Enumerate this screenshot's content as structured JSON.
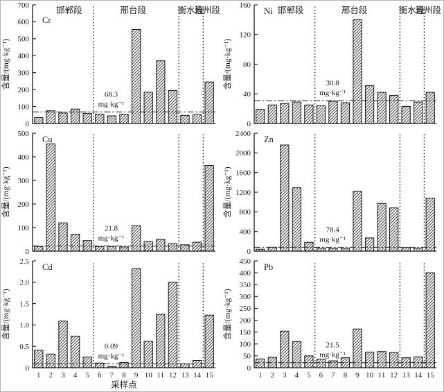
{
  "figure_name": "heavy-metal-concentration-bar-charts",
  "colors": {
    "ink": "#1a1a1a",
    "axis": "#141414",
    "bar_fill": "#ffffff",
    "hatch": "#1c1c1c",
    "reference_line": "#333333",
    "divider": "#222222",
    "background": "#ffffff"
  },
  "chart_data": {
    "type": "bar",
    "layout": "2 columns x 3 rows, shared x axis of 15 sampling points",
    "categories": [
      "1",
      "2",
      "3",
      "4",
      "5",
      "6",
      "7",
      "8",
      "9",
      "10",
      "11",
      "12",
      "13",
      "14",
      "15"
    ],
    "xlabel": "采样点",
    "ylabel": "含量/(mg·kg⁻¹)",
    "section_labels": [
      "邯郸段",
      "邢台段",
      "衡水段",
      "沧州段"
    ],
    "section_spans": [
      [
        0,
        5
      ],
      [
        5,
        12
      ],
      [
        12,
        14
      ],
      [
        14,
        15
      ]
    ],
    "section_center_fracs": [
      0.2,
      0.55,
      0.865,
      0.955
    ],
    "divider_slots": [
      5,
      12,
      14
    ],
    "grid": false,
    "charts": [
      {
        "element": "Cr",
        "ylim": [
          0,
          700
        ],
        "yticks": [
          0,
          100,
          200,
          300,
          400,
          500,
          600,
          700
        ],
        "ytick_labels": [
          "0",
          "100",
          "200",
          "300",
          "400",
          "500",
          "600",
          "700"
        ],
        "reference_value": 68.3,
        "reference_text": [
          "68.3",
          "mg·kg⁻¹"
        ],
        "values": [
          35,
          75,
          62,
          85,
          60,
          55,
          45,
          55,
          555,
          185,
          370,
          195,
          48,
          52,
          245
        ],
        "show_section_labels": true,
        "show_x_tick_labels": false,
        "show_xlabel": false
      },
      {
        "element": "Ni",
        "ylim": [
          0,
          160
        ],
        "yticks": [
          0,
          40,
          80,
          120,
          160
        ],
        "ytick_labels": [
          "0",
          "40",
          "80",
          "120",
          "160"
        ],
        "reference_value": 30.8,
        "reference_text": [
          "30.8",
          "mg·kg⁻¹"
        ],
        "values": [
          19,
          25,
          27,
          29,
          25,
          24,
          30,
          28,
          140,
          51,
          42,
          38,
          23,
          29,
          42
        ],
        "show_section_labels": true,
        "show_x_tick_labels": false,
        "show_xlabel": false
      },
      {
        "element": "Cu",
        "ylim": [
          0,
          500
        ],
        "yticks": [
          0,
          100,
          200,
          300,
          400,
          500
        ],
        "ytick_labels": [
          "0",
          "100",
          "200",
          "300",
          "400",
          "500"
        ],
        "reference_value": 21.8,
        "reference_text": [
          "21.8",
          "mg·kg⁻¹"
        ],
        "values": [
          20,
          455,
          120,
          72,
          45,
          20,
          20,
          18,
          108,
          40,
          50,
          32,
          27,
          38,
          363
        ],
        "show_section_labels": false,
        "show_x_tick_labels": false,
        "show_xlabel": false
      },
      {
        "element": "Zn",
        "ylim": [
          0,
          2400
        ],
        "yticks": [
          0,
          400,
          800,
          1200,
          1600,
          2000,
          2400
        ],
        "ytick_labels": [
          "0",
          "400",
          "800",
          "1200",
          "1600",
          "2000",
          "2400"
        ],
        "reference_value": 78.4,
        "reference_text": [
          "78.4",
          "mg·kg⁻¹"
        ],
        "values": [
          40,
          80,
          2160,
          1290,
          180,
          60,
          55,
          55,
          1220,
          270,
          970,
          880,
          75,
          60,
          1080
        ],
        "show_section_labels": false,
        "show_x_tick_labels": false,
        "show_xlabel": false
      },
      {
        "element": "Cd",
        "ylim": [
          0,
          2.5
        ],
        "yticks": [
          0,
          0.5,
          1.0,
          1.5,
          2.0,
          2.5
        ],
        "ytick_labels": [
          "0",
          "0.5",
          "1.0",
          "1.5",
          "2.0",
          "2.5"
        ],
        "reference_value": 0.09,
        "reference_text": [
          "0.09",
          "mg·kg⁻¹"
        ],
        "values": [
          0.41,
          0.32,
          1.09,
          0.74,
          0.25,
          0.11,
          0.03,
          0.12,
          2.32,
          0.62,
          1.25,
          2.0,
          0.09,
          0.17,
          1.23
        ],
        "show_section_labels": false,
        "show_x_tick_labels": true,
        "show_xlabel": true
      },
      {
        "element": "Pb",
        "ylim": [
          0,
          450
        ],
        "yticks": [
          0,
          50,
          100,
          150,
          200,
          250,
          300,
          350,
          400,
          450
        ],
        "ytick_labels": [
          "0",
          "50",
          "100",
          "150",
          "200",
          "250",
          "300",
          "350",
          "400",
          "450"
        ],
        "reference_value": 21.5,
        "reference_text": [
          "21.5",
          "mg·kg⁻¹"
        ],
        "values": [
          37,
          44,
          154,
          110,
          50,
          36,
          29,
          42,
          163,
          66,
          68,
          64,
          42,
          46,
          400
        ],
        "show_section_labels": false,
        "show_x_tick_labels": true,
        "show_xlabel": false
      }
    ]
  }
}
